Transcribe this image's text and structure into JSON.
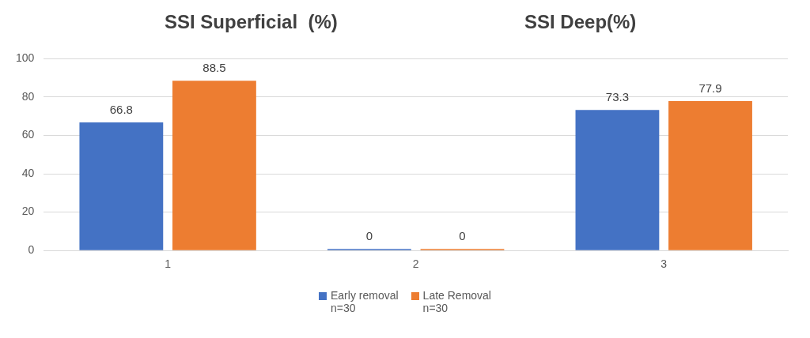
{
  "chart_data": {
    "type": "bar",
    "title": "SSI Superficial  (%)",
    "annotations": [
      "SSI Deep(%)"
    ],
    "categories": [
      "1",
      "2",
      "3"
    ],
    "series": [
      {
        "name": "Early removal\nn=30",
        "color": "#4472c4",
        "values": [
          66.8,
          0,
          73.3
        ]
      },
      {
        "name": "Late Removal\nn=30",
        "color": "#ed7d31",
        "values": [
          88.5,
          0,
          77.9
        ]
      }
    ],
    "ylim": [
      0,
      100
    ],
    "yticks": [
      0,
      20,
      40,
      60,
      80,
      100
    ],
    "grid": "y",
    "legend": "bottom",
    "data_labels": true
  }
}
